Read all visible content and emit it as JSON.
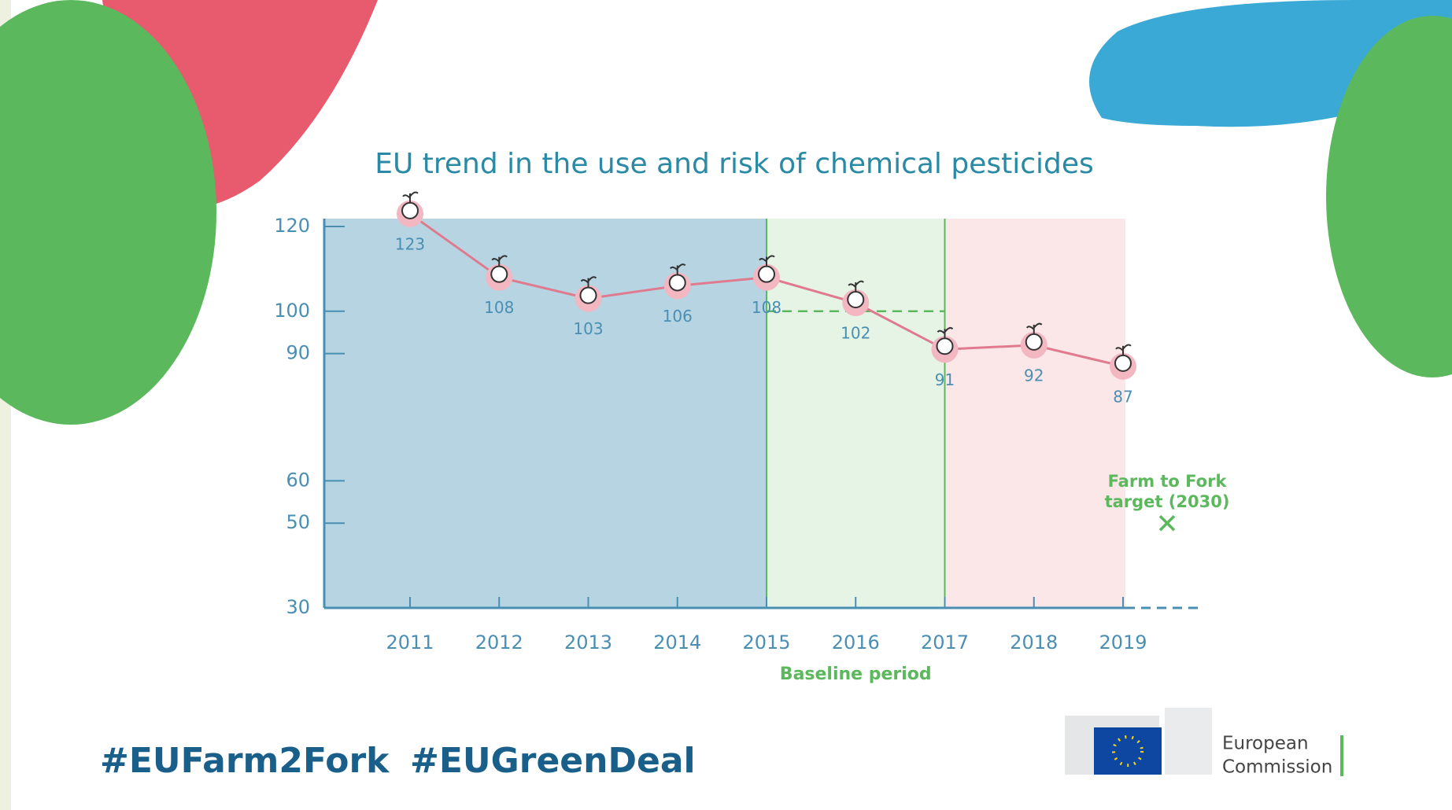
{
  "chart_data": {
    "type": "line",
    "title": "EU trend in the use and risk of chemical pesticides",
    "categories": [
      "2011",
      "2012",
      "2013",
      "2014",
      "2015",
      "2016",
      "2017",
      "2018",
      "2019"
    ],
    "values": [
      123,
      108,
      103,
      106,
      108,
      102,
      91,
      92,
      87
    ],
    "color": "#e07a8e",
    "ylim": [
      30,
      120
    ],
    "yticks": [
      30,
      50,
      60,
      90,
      100,
      120
    ],
    "baseline": {
      "label": "Baseline period",
      "value": 100
    },
    "target": {
      "label": "Farm to Fork target (2030)",
      "value": 50
    }
  },
  "footer": {
    "hashtags": [
      "#EUFarm2Fork",
      "#EUGreenDeal"
    ],
    "logo": [
      "European",
      "Commission"
    ]
  }
}
